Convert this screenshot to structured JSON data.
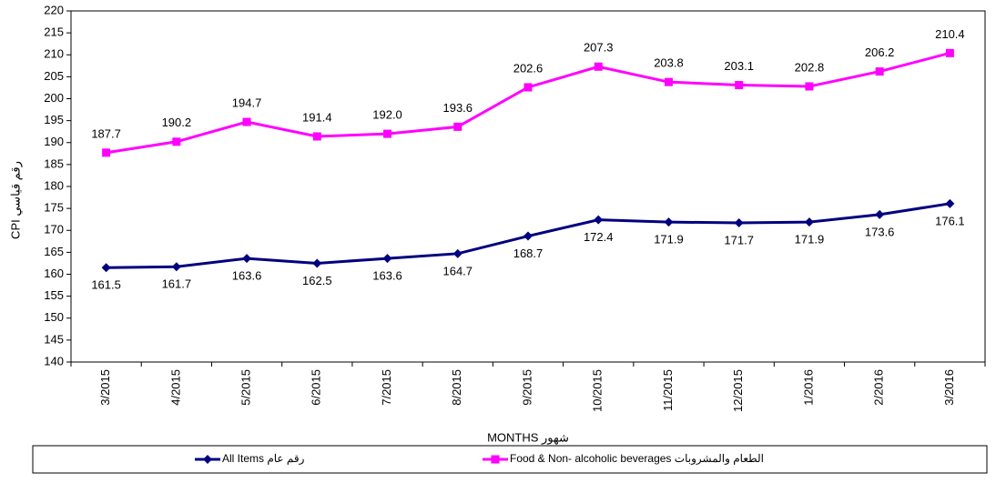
{
  "chart_data": {
    "type": "line",
    "xlabel": "MONTHS  شهور",
    "ylabel": "CPI  رقم قياسي",
    "categories": [
      "3/2015",
      "4/2015",
      "5/2015",
      "6/2015",
      "7/2015",
      "8/2015",
      "9/2015",
      "10/2015",
      "11/2015",
      "12/2015",
      "1/2016",
      "2/2016",
      "3/2016"
    ],
    "series": [
      {
        "name": "All Items رقم عام",
        "color": "#000080",
        "marker": "diamond",
        "values": [
          161.5,
          161.7,
          163.6,
          162.5,
          163.6,
          164.7,
          168.7,
          172.4,
          171.9,
          171.7,
          171.9,
          173.6,
          176.1
        ],
        "value_labels": [
          "161.5",
          "161.7",
          "163.6",
          "162.5",
          "163.6",
          "164.7",
          "168.7",
          "172.4",
          "171.9",
          "171.7",
          "171.9",
          "173.6",
          "176.1"
        ]
      },
      {
        "name": "Food & Non- alcoholic  beverages الطعام والمشروبات",
        "color": "#ff00ff",
        "marker": "square",
        "values": [
          187.7,
          190.2,
          194.7,
          191.4,
          192.0,
          193.6,
          202.6,
          207.3,
          203.8,
          203.1,
          202.8,
          206.2,
          210.4
        ],
        "value_labels": [
          "187.7",
          "190.2",
          "194.7",
          "191.4",
          "192.0",
          "193.6",
          "202.6",
          "207.3",
          "203.8",
          "203.1",
          "202.8",
          "206.2",
          "210.4"
        ]
      }
    ],
    "ylim": [
      140,
      220
    ],
    "yticks": [
      140,
      145,
      150,
      155,
      160,
      165,
      170,
      175,
      180,
      185,
      190,
      195,
      200,
      205,
      210,
      215,
      220
    ],
    "grid": false
  }
}
